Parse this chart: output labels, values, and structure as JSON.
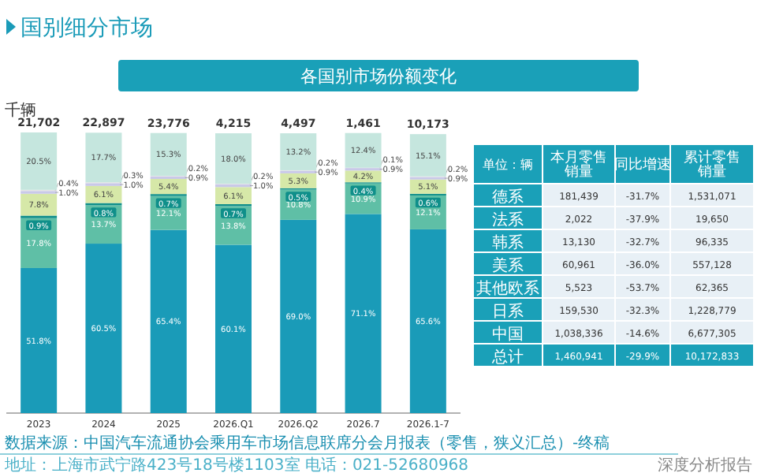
{
  "chart_data": [
    {
      "type": "bar",
      "title": "国别细分市场",
      "subtitle": "各国别市场份额变化",
      "ylabel": "千辆",
      "stacked": true,
      "categories": [
        "2023",
        "2024",
        "2025",
        "2026.Q1",
        "2026.Q2",
        "2026.7",
        "2026.1-7"
      ],
      "series": [
        {
          "color": "#1a9bb8",
          "values": [
            51.8,
            60.5,
            65.4,
            60.1,
            69.0,
            71.1,
            65.6
          ],
          "value_labels": [
            "51.8%",
            "60.5%",
            "65.4%",
            "60.1%",
            "69.0%",
            "71.1%",
            "65.6%"
          ]
        },
        {
          "color": "#5fbfa6",
          "values": [
            17.8,
            13.7,
            12.1,
            13.8,
            10.8,
            10.9,
            12.1
          ],
          "value_labels": [
            "17.8%",
            "13.7%",
            "12.1%",
            "13.8%",
            "10.8%",
            "10.9%",
            "12.1%"
          ]
        },
        {
          "color": "#0f8f8a",
          "values": [
            0.9,
            0.8,
            0.7,
            0.7,
            0.5,
            0.4,
            0.6
          ],
          "value_labels": [
            "0.9%",
            "0.8%",
            "0.7%",
            "0.7%",
            "0.5%",
            "0.4%",
            "0.6%"
          ]
        },
        {
          "color": "#d6e8a8",
          "values": [
            7.8,
            6.1,
            5.4,
            6.1,
            5.3,
            4.2,
            5.1
          ],
          "value_labels": [
            "7.8%",
            "6.1%",
            "5.4%",
            "6.1%",
            "5.3%",
            "4.2%",
            "5.1%"
          ]
        },
        {
          "color": "#c9c9e8",
          "values": [
            1.0,
            1.0,
            0.9,
            1.0,
            0.9,
            0.9,
            0.9
          ],
          "value_labels": [
            "1.0%",
            "1.0%",
            "0.9%",
            "1.0%",
            "0.9%",
            "0.9%",
            "0.9%"
          ]
        },
        {
          "color": "#e4e4e4",
          "values": [
            0.4,
            0.3,
            0.2,
            0.2,
            0.2,
            0.1,
            0.2
          ],
          "value_labels": [
            "0.4%",
            "0.3%",
            "0.2%",
            "0.2%",
            "0.2%",
            "0.1%",
            "0.2%"
          ]
        },
        {
          "color": "#c5e6de",
          "values": [
            20.5,
            17.7,
            15.3,
            18.0,
            13.2,
            12.4,
            15.1
          ],
          "value_labels": [
            "20.5%",
            "17.7%",
            "15.3%",
            "18.0%",
            "13.2%",
            "12.4%",
            "15.1%"
          ]
        }
      ],
      "annotations": [
        "21,702",
        "22,897",
        "23,776",
        "4,215",
        "4,497",
        "1,461",
        "10,173",
        "数据来源：中国汽车流通协会乘用车市场信息联席分会月报表（零售，狭义汇总）-终稿",
        "地址：上海市武宁路423号18号楼1103室 电话：021-52680968",
        "深度分析报告"
      ]
    },
    {
      "type": "other",
      "categories": [
        "单位：辆",
        "本月零售销量",
        "同比增速",
        "累计零售销量"
      ],
      "y_categories": [
        "德系",
        "法系",
        "韩系",
        "美系",
        "其他欧系",
        "日系",
        "中国",
        "总计"
      ],
      "cell_labels": [
        [
          "181,439",
          "-31.7%",
          "1,531,071"
        ],
        [
          "2,022",
          "-37.9%",
          "19,650"
        ],
        [
          "13,130",
          "-32.7%",
          "96,335"
        ],
        [
          "60,961",
          "-36.0%",
          "557,128"
        ],
        [
          "5,523",
          "-53.7%",
          "62,365"
        ],
        [
          "159,530",
          "-32.3%",
          "1,228,779"
        ],
        [
          "1,038,336",
          "-14.6%",
          "6,677,305"
        ],
        [
          "1,460,941",
          "-29.9%",
          "10,172,833"
        ]
      ]
    }
  ]
}
